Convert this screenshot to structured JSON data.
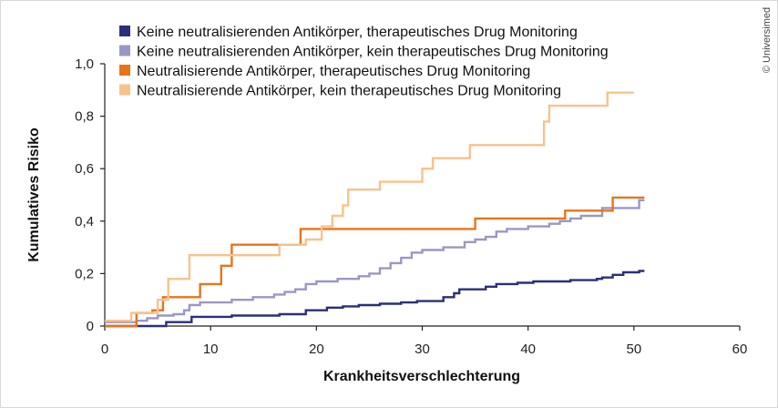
{
  "chart_data": {
    "type": "line",
    "step": true,
    "xlabel": "Krankheitsverschlechterung",
    "ylabel": "Kumulatives Risiko",
    "xlim": [
      0,
      60
    ],
    "ylim": [
      0,
      1.0
    ],
    "xticks": [
      "0",
      "10",
      "20",
      "30",
      "40",
      "50",
      "60"
    ],
    "yticks": [
      "0",
      "0,2",
      "0,4",
      "0,6",
      "0,8",
      "1,0"
    ],
    "xtick_values": [
      0,
      10,
      20,
      30,
      40,
      50,
      60
    ],
    "ytick_values": [
      0,
      0.2,
      0.4,
      0.6,
      0.8,
      1.0
    ],
    "grid": false,
    "legend_position": "top-left",
    "credit": "© Universimed",
    "series": [
      {
        "name": "Keine neutralisierenden Antikörper, therapeutisches Drug Monitoring",
        "color": "#2b2f7a",
        "points": [
          [
            0,
            0
          ],
          [
            5.8,
            0
          ],
          [
            5.8,
            0.015
          ],
          [
            8.2,
            0.015
          ],
          [
            8.2,
            0.035
          ],
          [
            12,
            0.035
          ],
          [
            12,
            0.04
          ],
          [
            16.5,
            0.04
          ],
          [
            16.5,
            0.045
          ],
          [
            19,
            0.045
          ],
          [
            19,
            0.06
          ],
          [
            21,
            0.06
          ],
          [
            21,
            0.07
          ],
          [
            22.5,
            0.07
          ],
          [
            22.5,
            0.075
          ],
          [
            24,
            0.075
          ],
          [
            24,
            0.08
          ],
          [
            26,
            0.08
          ],
          [
            26,
            0.085
          ],
          [
            28,
            0.085
          ],
          [
            28,
            0.09
          ],
          [
            29.5,
            0.09
          ],
          [
            29.5,
            0.095
          ],
          [
            32,
            0.095
          ],
          [
            32,
            0.11
          ],
          [
            33,
            0.11
          ],
          [
            33,
            0.125
          ],
          [
            33.5,
            0.125
          ],
          [
            33.5,
            0.14
          ],
          [
            36,
            0.14
          ],
          [
            36,
            0.15
          ],
          [
            37,
            0.15
          ],
          [
            37,
            0.16
          ],
          [
            39,
            0.16
          ],
          [
            39,
            0.165
          ],
          [
            40.5,
            0.165
          ],
          [
            40.5,
            0.17
          ],
          [
            44,
            0.17
          ],
          [
            44,
            0.175
          ],
          [
            46.5,
            0.175
          ],
          [
            46.5,
            0.18
          ],
          [
            47,
            0.18
          ],
          [
            47,
            0.185
          ],
          [
            48,
            0.185
          ],
          [
            48,
            0.195
          ],
          [
            49,
            0.195
          ],
          [
            49,
            0.205
          ],
          [
            50.5,
            0.205
          ],
          [
            50.5,
            0.21
          ],
          [
            51,
            0.21
          ]
        ]
      },
      {
        "name": "Keine neutralisierenden Antikörper, kein therapeutisches Drug Monitoring",
        "color": "#9a97c7",
        "points": [
          [
            0,
            0.015
          ],
          [
            3,
            0.015
          ],
          [
            3,
            0.02
          ],
          [
            4,
            0.02
          ],
          [
            4,
            0.03
          ],
          [
            5,
            0.03
          ],
          [
            5,
            0.04
          ],
          [
            6.5,
            0.04
          ],
          [
            6.5,
            0.045
          ],
          [
            7.5,
            0.045
          ],
          [
            7.5,
            0.06
          ],
          [
            8,
            0.06
          ],
          [
            8,
            0.08
          ],
          [
            9,
            0.08
          ],
          [
            9,
            0.09
          ],
          [
            12,
            0.09
          ],
          [
            12,
            0.1
          ],
          [
            14,
            0.1
          ],
          [
            14,
            0.11
          ],
          [
            16,
            0.11
          ],
          [
            16,
            0.12
          ],
          [
            17,
            0.12
          ],
          [
            17,
            0.13
          ],
          [
            18,
            0.13
          ],
          [
            18,
            0.14
          ],
          [
            19,
            0.14
          ],
          [
            19,
            0.16
          ],
          [
            20,
            0.16
          ],
          [
            20,
            0.17
          ],
          [
            22,
            0.17
          ],
          [
            22,
            0.18
          ],
          [
            24,
            0.18
          ],
          [
            24,
            0.19
          ],
          [
            25,
            0.19
          ],
          [
            25,
            0.2
          ],
          [
            26,
            0.2
          ],
          [
            26,
            0.22
          ],
          [
            27,
            0.22
          ],
          [
            27,
            0.24
          ],
          [
            28,
            0.24
          ],
          [
            28,
            0.26
          ],
          [
            29,
            0.26
          ],
          [
            29,
            0.28
          ],
          [
            30,
            0.28
          ],
          [
            30,
            0.29
          ],
          [
            32,
            0.29
          ],
          [
            32,
            0.3
          ],
          [
            34,
            0.3
          ],
          [
            34,
            0.32
          ],
          [
            35,
            0.32
          ],
          [
            35,
            0.33
          ],
          [
            36,
            0.33
          ],
          [
            36,
            0.34
          ],
          [
            37,
            0.34
          ],
          [
            37,
            0.36
          ],
          [
            38,
            0.36
          ],
          [
            38,
            0.37
          ],
          [
            40,
            0.37
          ],
          [
            40,
            0.38
          ],
          [
            42,
            0.38
          ],
          [
            42,
            0.39
          ],
          [
            43,
            0.39
          ],
          [
            43,
            0.4
          ],
          [
            44,
            0.4
          ],
          [
            44,
            0.41
          ],
          [
            45,
            0.41
          ],
          [
            45,
            0.42
          ],
          [
            47,
            0.42
          ],
          [
            47,
            0.45
          ],
          [
            50.5,
            0.45
          ],
          [
            50.5,
            0.48
          ],
          [
            51,
            0.48
          ]
        ]
      },
      {
        "name": "Neutralisierende Antikörper, therapeutisches Drug Monitoring",
        "color": "#e8741a",
        "points": [
          [
            0,
            0
          ],
          [
            3,
            0
          ],
          [
            3,
            0.05
          ],
          [
            4.5,
            0.05
          ],
          [
            4.5,
            0.06
          ],
          [
            5.5,
            0.06
          ],
          [
            5.5,
            0.11
          ],
          [
            9,
            0.11
          ],
          [
            9,
            0.16
          ],
          [
            11,
            0.16
          ],
          [
            11,
            0.23
          ],
          [
            12,
            0.23
          ],
          [
            12,
            0.31
          ],
          [
            18.5,
            0.31
          ],
          [
            18.5,
            0.37
          ],
          [
            35,
            0.37
          ],
          [
            35,
            0.41
          ],
          [
            43.5,
            0.41
          ],
          [
            43.5,
            0.44
          ],
          [
            48,
            0.44
          ],
          [
            48,
            0.49
          ],
          [
            51,
            0.49
          ]
        ]
      },
      {
        "name": "Neutralisierende Antikörper, kein therapeutisches Drug Monitoring",
        "color": "#f7c38c",
        "points": [
          [
            0,
            0.02
          ],
          [
            2.5,
            0.02
          ],
          [
            2.5,
            0.05
          ],
          [
            5,
            0.05
          ],
          [
            5,
            0.1
          ],
          [
            6,
            0.1
          ],
          [
            6,
            0.18
          ],
          [
            8,
            0.18
          ],
          [
            8,
            0.27
          ],
          [
            16.5,
            0.27
          ],
          [
            16.5,
            0.31
          ],
          [
            19,
            0.31
          ],
          [
            19,
            0.33
          ],
          [
            20.5,
            0.33
          ],
          [
            20.5,
            0.38
          ],
          [
            21.5,
            0.38
          ],
          [
            21.5,
            0.42
          ],
          [
            22.5,
            0.42
          ],
          [
            22.5,
            0.46
          ],
          [
            23,
            0.46
          ],
          [
            23,
            0.52
          ],
          [
            26,
            0.52
          ],
          [
            26,
            0.55
          ],
          [
            30,
            0.55
          ],
          [
            30,
            0.6
          ],
          [
            31,
            0.6
          ],
          [
            31,
            0.64
          ],
          [
            34.5,
            0.64
          ],
          [
            34.5,
            0.69
          ],
          [
            41.5,
            0.69
          ],
          [
            41.5,
            0.78
          ],
          [
            42,
            0.78
          ],
          [
            42,
            0.84
          ],
          [
            47.5,
            0.84
          ],
          [
            47.5,
            0.89
          ],
          [
            50,
            0.89
          ]
        ]
      }
    ]
  }
}
